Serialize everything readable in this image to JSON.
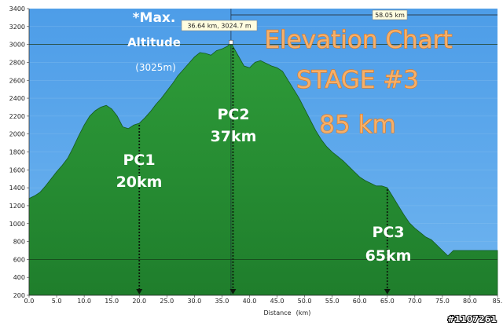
{
  "chart_data": {
    "type": "area",
    "xlabel": "Distance",
    "xunit": "(km)",
    "xlim": [
      0,
      85
    ],
    "ylim": [
      200,
      3400
    ],
    "x_ticks": [
      "0.0",
      "5.0",
      "10.0",
      "15.0",
      "20.0",
      "25.0",
      "30.0",
      "35.0",
      "40.0",
      "45.0",
      "50.0",
      "55.0",
      "60.0",
      "65.0",
      "70.0",
      "75.0",
      "80.0",
      "85."
    ],
    "y_ticks": [
      "200",
      "400",
      "600",
      "800",
      "1000",
      "1200",
      "1400",
      "1600",
      "1800",
      "2000",
      "2200",
      "2400",
      "2600",
      "2800",
      "3000",
      "3200",
      "3400"
    ],
    "grid": true,
    "fill_color": "#2f9a38",
    "sky_color": "#5aa7ec",
    "profile": {
      "x": [
        0,
        1,
        2,
        3,
        4,
        5,
        6,
        7,
        8,
        9,
        10,
        11,
        12,
        13,
        14,
        15,
        16,
        17,
        18,
        19,
        20,
        21,
        22,
        23,
        24,
        25,
        26,
        27,
        28,
        29,
        30,
        31,
        32,
        33,
        34,
        35,
        36,
        36.64,
        37,
        38,
        39,
        40,
        41,
        42,
        43,
        44,
        45,
        46,
        47,
        48,
        49,
        50,
        51,
        52,
        53,
        54,
        55,
        56,
        57,
        58,
        59,
        60,
        61,
        62,
        63,
        64,
        65,
        66,
        67,
        68,
        69,
        70,
        71,
        72,
        73,
        74,
        75,
        76,
        77,
        78,
        80,
        82,
        85
      ],
      "y": [
        1280,
        1310,
        1350,
        1420,
        1500,
        1580,
        1650,
        1730,
        1850,
        1980,
        2100,
        2200,
        2260,
        2300,
        2320,
        2280,
        2200,
        2080,
        2060,
        2100,
        2120,
        2180,
        2250,
        2330,
        2400,
        2480,
        2560,
        2650,
        2720,
        2790,
        2860,
        2910,
        2900,
        2880,
        2930,
        2950,
        2980,
        3025,
        2980,
        2870,
        2760,
        2740,
        2800,
        2820,
        2790,
        2760,
        2740,
        2700,
        2600,
        2500,
        2400,
        2280,
        2160,
        2040,
        1940,
        1860,
        1800,
        1750,
        1700,
        1640,
        1580,
        1520,
        1480,
        1450,
        1420,
        1420,
        1400,
        1300,
        1200,
        1100,
        1010,
        950,
        900,
        850,
        820,
        760,
        700,
        640,
        700,
        700,
        700,
        700,
        700
      ]
    },
    "checkpoints": [
      {
        "name": "PC1",
        "distance": "20km",
        "x": 20
      },
      {
        "name": "PC2",
        "distance": "37km",
        "x": 37
      },
      {
        "name": "PC3",
        "distance": "65km",
        "x": 65
      }
    ],
    "max_point_tooltip": "36.64 km, 3024.7 m",
    "cursor_x": 36.64,
    "range_label": "58.05 km",
    "reference_line_y": 3000
  },
  "annotations": {
    "title_line1": "Elevation Chart",
    "title_line2": "STAGE #3",
    "title_line3": "85 km",
    "max_altitude_line1": "*Max.",
    "max_altitude_line2": "Altitude",
    "max_altitude_value": "(3025m)"
  },
  "watermark": "#1107261"
}
